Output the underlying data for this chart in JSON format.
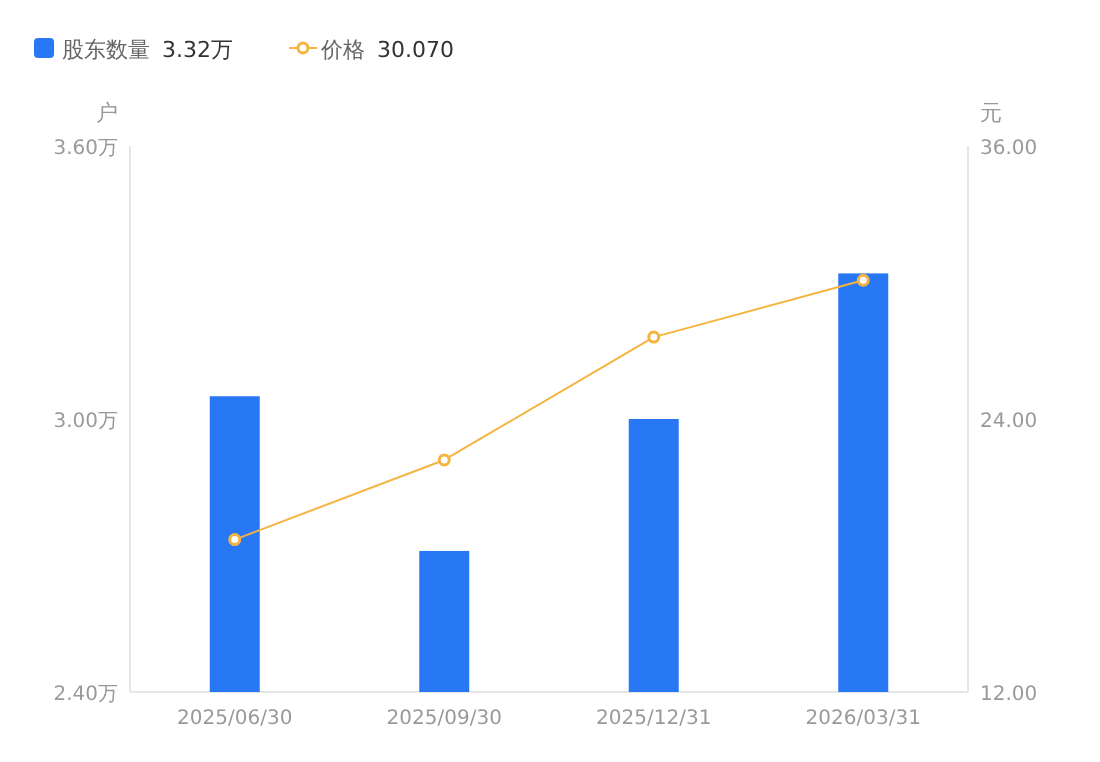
{
  "chart_data": {
    "type": "bar",
    "categories": [
      "2025/06/30",
      "2025/09/30",
      "2025/12/31",
      "2026/03/31"
    ],
    "series": [
      {
        "name": "股东数量",
        "color": "#2878f5",
        "values": [
          3.05,
          2.71,
          3.0,
          3.32
        ]
      },
      {
        "name": "价格",
        "type": "line",
        "axis": "y2",
        "color": "#f5b440",
        "values": [
          18.7,
          22.2,
          27.6,
          30.1
        ]
      }
    ],
    "ylabel": "户",
    "y2label": "元",
    "ylim": [
      2.4,
      3.6
    ],
    "yticks": [
      {
        "value": 2.4,
        "label": "2.40万"
      },
      {
        "value": 3.0,
        "label": "3.00万"
      },
      {
        "value": 3.6,
        "label": "3.60万"
      }
    ],
    "y2lim": [
      12,
      36
    ],
    "y2ticks": [
      {
        "value": 12,
        "label": "12.00"
      },
      {
        "value": 24,
        "label": "24.00"
      },
      {
        "value": 36,
        "label": "36.00"
      }
    ],
    "marker": "circle",
    "legend": "top left",
    "annotations": [
      "3.32万",
      "30.070"
    ]
  }
}
